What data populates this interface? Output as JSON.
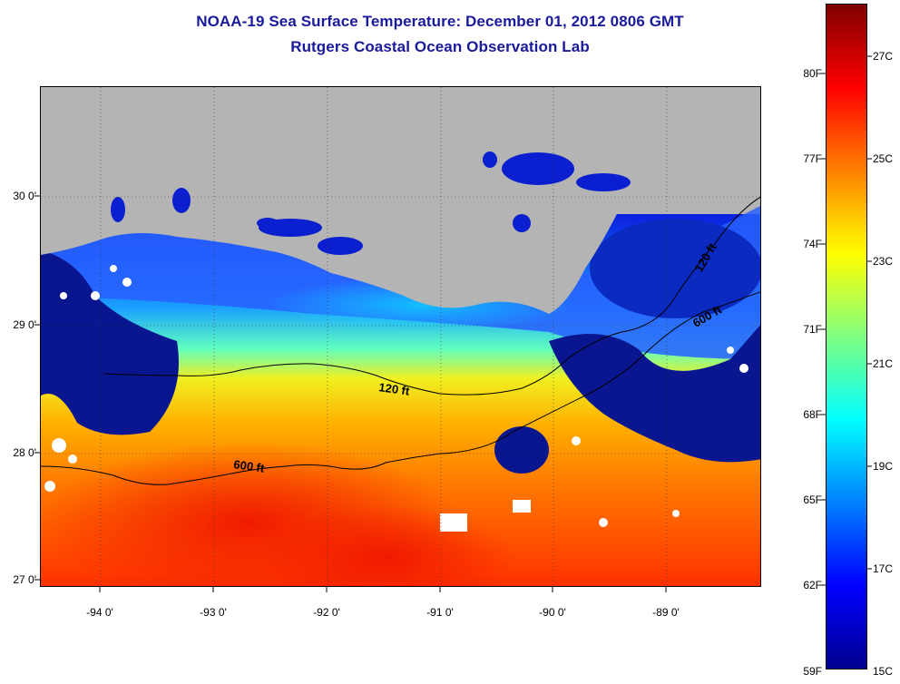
{
  "title": {
    "line1": "NOAA-19 Sea Surface Temperature:  December 01, 2012 0806 GMT",
    "line2": "Rutgers Coastal Ocean Observation Lab"
  },
  "map": {
    "lat_ticks": [
      "30 0'",
      "29 0'",
      "28 0'",
      "27 0'"
    ],
    "lon_ticks": [
      "-94 0'",
      "-93 0'",
      "-92 0'",
      "-91 0'",
      "-90 0'",
      "-89 0'"
    ],
    "contour_labels": [
      "120 ft",
      "600 ft",
      "120 ft",
      "600 ft"
    ],
    "land_color": "#b4b4b4",
    "contour_color": "#000000"
  },
  "colorbar": {
    "fahrenheit_labels": [
      "80F",
      "77F",
      "74F",
      "71F",
      "68F",
      "65F",
      "62F",
      "59F"
    ],
    "celsius_labels": [
      "27C",
      "25C",
      "23C",
      "21C",
      "19C",
      "17C",
      "15C"
    ],
    "colormap": "jet",
    "min_label": "15C",
    "max_color": "#800000",
    "min_color": "#00008f"
  }
}
